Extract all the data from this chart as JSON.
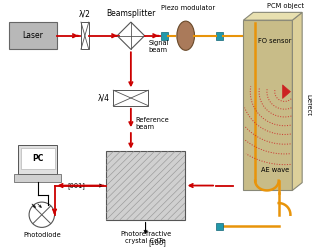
{
  "bg_color": "#ffffff",
  "beam_color": "#cc0000",
  "fiber_color": "#e8940a",
  "ae_color": "#cc2222",
  "pcm_face": "#c8bc88",
  "pcm_side": "#ddd09a",
  "pcm_top": "#e8e0b0",
  "crystal_color": "#c8c8c8",
  "laser_color": "#b8b8b8",
  "labels": {
    "laser": "Laser",
    "lambda_half": "λ/2",
    "beamsplitter": "Beamsplitter",
    "piezo_mod": "Piezo modulator",
    "pcm": "PCM object",
    "fo_sensor": "FO sensor",
    "ae_wave": "AE wave",
    "defect": "Defect",
    "signal_beam": "Signal\nbeam",
    "reference_beam": "Reference\nbeam",
    "lambda_quarter": "λ/4",
    "pc": "PC",
    "photodiode": "Photodiode",
    "crystal": "Photorefractive\ncrystal CdTe",
    "dir_001": "[001]",
    "dir_100": "[100]"
  },
  "fs": 5.5,
  "sfs": 4.8
}
